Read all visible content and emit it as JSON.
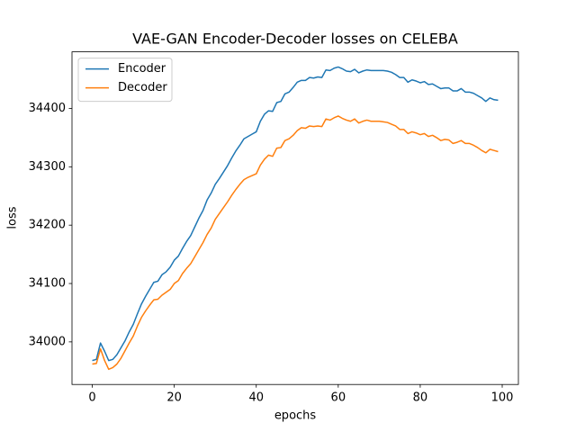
{
  "chart_data": {
    "type": "line",
    "title": "VAE-GAN Encoder-Decoder losses on CELEBA",
    "x_label": "epochs",
    "y_label": "loss",
    "x": [
      0,
      1,
      2,
      3,
      4,
      5,
      6,
      7,
      8,
      9,
      10,
      11,
      12,
      13,
      14,
      15,
      16,
      17,
      18,
      19,
      20,
      21,
      22,
      23,
      24,
      25,
      26,
      27,
      28,
      29,
      30,
      31,
      32,
      33,
      34,
      35,
      36,
      37,
      38,
      39,
      40,
      41,
      42,
      43,
      44,
      45,
      46,
      47,
      48,
      49,
      50,
      51,
      52,
      53,
      54,
      55,
      56,
      57,
      58,
      59,
      60,
      61,
      62,
      63,
      64,
      65,
      66,
      67,
      68,
      69,
      70,
      71,
      72,
      73,
      74,
      75,
      76,
      77,
      78,
      79,
      80,
      81,
      82,
      83,
      84,
      85,
      86,
      87,
      88,
      89,
      90,
      91,
      92,
      93,
      94,
      95,
      96,
      97,
      98,
      99
    ],
    "series": [
      {
        "name": "Encoder",
        "color": "#1f77b4",
        "values": [
          33968,
          33970,
          33998,
          33984,
          33968,
          33970,
          33978,
          33990,
          34002,
          34017,
          34030,
          34048,
          34065,
          34078,
          34090,
          34102,
          34104,
          34115,
          34120,
          34128,
          34140,
          34147,
          34160,
          34172,
          34182,
          34197,
          34212,
          34225,
          34243,
          34255,
          34270,
          34280,
          34291,
          34302,
          34315,
          34327,
          34337,
          34348,
          34352,
          34356,
          34360,
          34378,
          34390,
          34396,
          34395,
          34410,
          34412,
          34425,
          34428,
          34436,
          34445,
          34448,
          34448,
          34453,
          34452,
          34454,
          34453,
          34466,
          34465,
          34469,
          34471,
          34468,
          34464,
          34463,
          34467,
          34461,
          34464,
          34466,
          34465,
          34465,
          34465,
          34465,
          34464,
          34462,
          34458,
          34453,
          34453,
          34445,
          34449,
          34447,
          34444,
          34446,
          34441,
          34442,
          34438,
          34434,
          34435,
          34435,
          34430,
          34430,
          34434,
          34428,
          34428,
          34426,
          34422,
          34418,
          34412,
          34418,
          34415,
          34414
        ]
      },
      {
        "name": "Decoder",
        "color": "#ff7f0e",
        "values": [
          33962,
          33963,
          33988,
          33968,
          33953,
          33956,
          33962,
          33972,
          33985,
          33998,
          34010,
          34027,
          34042,
          34053,
          34063,
          34072,
          34073,
          34080,
          34085,
          34090,
          34100,
          34105,
          34117,
          34126,
          34134,
          34146,
          34158,
          34170,
          34184,
          34195,
          34210,
          34220,
          34230,
          34240,
          34251,
          34261,
          34270,
          34278,
          34282,
          34285,
          34288,
          34303,
          34313,
          34320,
          34318,
          34332,
          34333,
          34345,
          34348,
          34354,
          34362,
          34367,
          34366,
          34370,
          34369,
          34370,
          34369,
          34382,
          34380,
          34384,
          34387,
          34383,
          34380,
          34378,
          34382,
          34375,
          34378,
          34380,
          34378,
          34378,
          34378,
          34377,
          34376,
          34373,
          34370,
          34364,
          34364,
          34357,
          34360,
          34358,
          34355,
          34357,
          34352,
          34354,
          34350,
          34345,
          34347,
          34346,
          34340,
          34342,
          34345,
          34340,
          34340,
          34337,
          34333,
          34328,
          34324,
          34330,
          34328,
          34326
        ]
      }
    ],
    "xlim": [
      -4.95,
      103.95
    ],
    "xticks": [
      0,
      20,
      40,
      60,
      80,
      100
    ],
    "ylim": [
      33927,
      34497
    ],
    "yticks": [
      34000,
      34100,
      34200,
      34300,
      34400
    ],
    "grid": false,
    "legend": "upper left"
  }
}
